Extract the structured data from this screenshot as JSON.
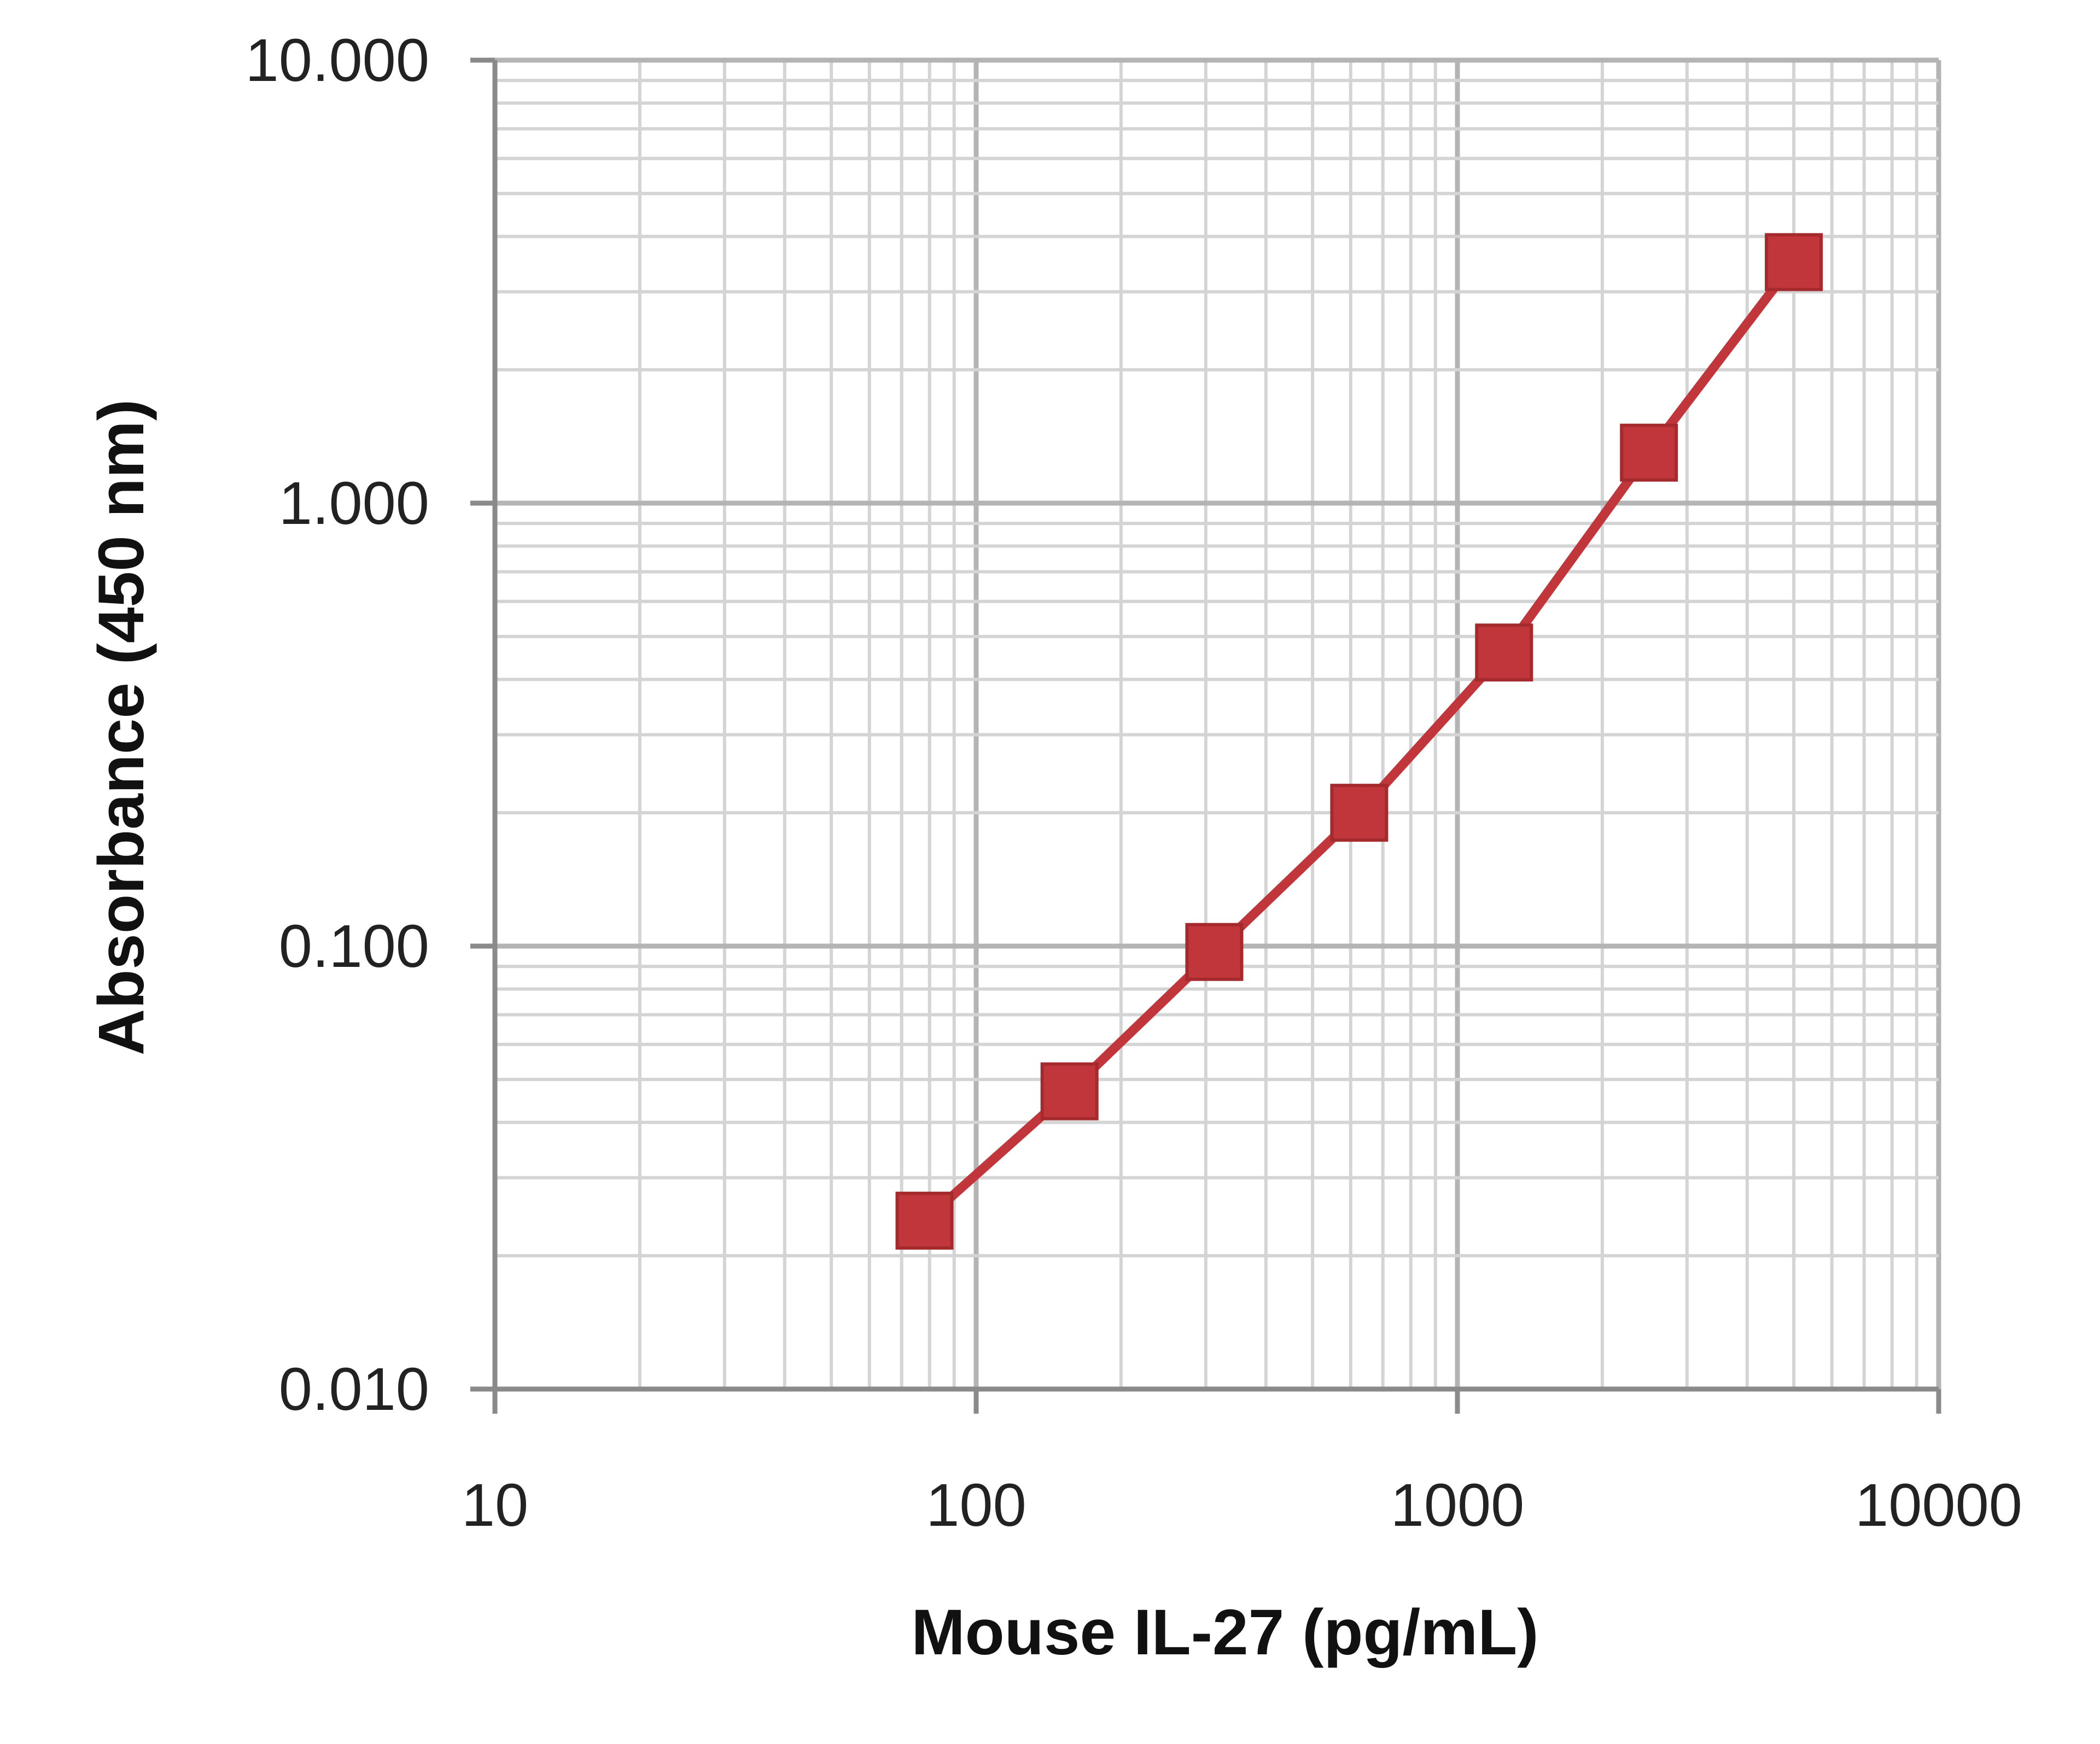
{
  "chart_data": {
    "type": "line",
    "xlabel": "Mouse IL-27 (pg/mL)",
    "ylabel": "Absorbance (450 nm)",
    "x_scale": "log",
    "y_scale": "log",
    "xlim": [
      10,
      10000
    ],
    "ylim": [
      0.01,
      10
    ],
    "x_ticks": [
      "10",
      "100",
      "1000",
      "10000"
    ],
    "y_ticks": [
      "0.010",
      "0.100",
      "1.000",
      "10.000"
    ],
    "grid": true,
    "legend": "none",
    "series": [
      {
        "color": "#c0363a",
        "marker": "square",
        "x": [
          78.1,
          156.3,
          312.5,
          625,
          1250,
          2500,
          5000
        ],
        "y": [
          0.024,
          0.047,
          0.097,
          0.2,
          0.46,
          1.3,
          3.5
        ]
      }
    ]
  }
}
